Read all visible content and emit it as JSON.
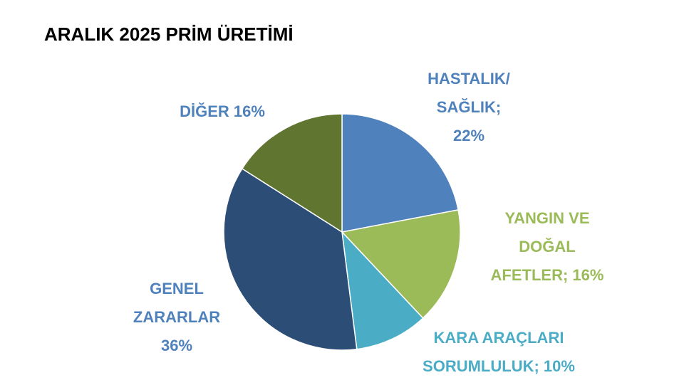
{
  "chart_data": {
    "type": "pie",
    "title": "ARALIK 2025 PRİM ÜRETİMİ",
    "labels": [
      [
        "HASTALIK/",
        "SAĞLIK;",
        "22%"
      ],
      [
        "YANGIN VE",
        "DOĞAL",
        "AFETLER; 16%"
      ],
      [
        "KARA ARAÇLARI",
        "SORUMLULUK; 10%"
      ],
      [
        "GENEL",
        "ZARARLAR",
        "36%"
      ],
      [
        "DİĞER 16%"
      ]
    ],
    "values": [
      22,
      16,
      10,
      36,
      16
    ],
    "colors": [
      "#4f81bd",
      "#9bbb59",
      "#4bacc6",
      "#2c4d75",
      "#5f7530"
    ],
    "label_colors": [
      "#4f81bd",
      "#9bbb59",
      "#4bacc6",
      "#4f81bd",
      "#4f81bd"
    ]
  }
}
